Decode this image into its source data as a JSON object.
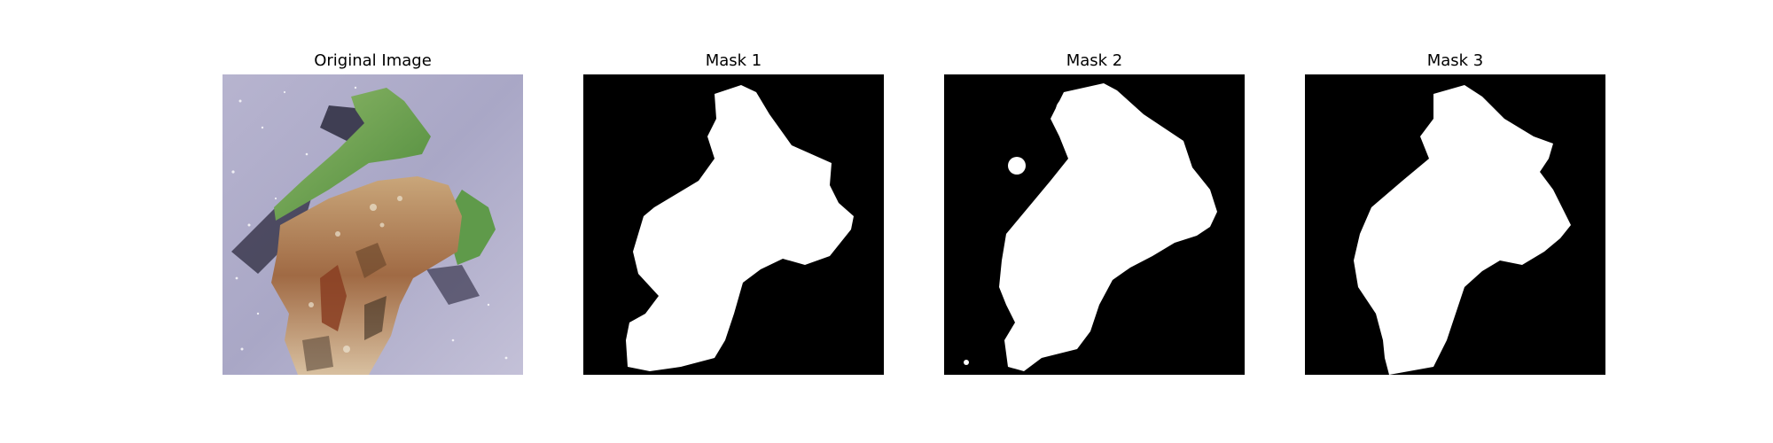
{
  "figure": {
    "background": "#ffffff",
    "panels": [
      {
        "title": "Original Image",
        "kind": "photo",
        "subject": "leaf-icon"
      },
      {
        "title": "Mask 1",
        "kind": "mask",
        "background": "#000000",
        "foreground": "#ffffff"
      },
      {
        "title": "Mask 2",
        "kind": "mask",
        "background": "#000000",
        "foreground": "#ffffff"
      },
      {
        "title": "Mask 3",
        "kind": "mask",
        "background": "#000000",
        "foreground": "#ffffff"
      }
    ]
  }
}
